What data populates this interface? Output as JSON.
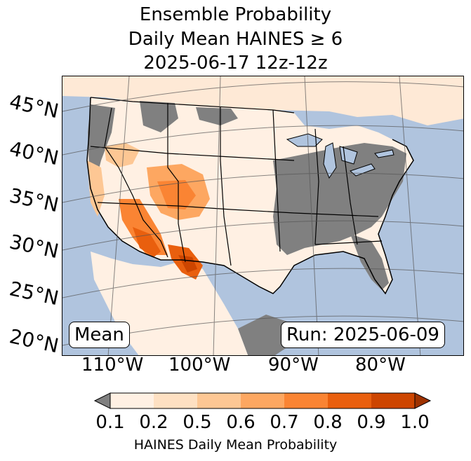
{
  "title": {
    "line1": "Ensemble Probability",
    "line2": "Daily Mean HAINES ≥ 6",
    "line3": "2025-06-17 12z-12z"
  },
  "map": {
    "region": "Continental United States",
    "latitude_labels": [
      "45°N",
      "40°N",
      "35°N",
      "30°N",
      "25°N",
      "20°N"
    ],
    "longitude_labels": [
      "110°W",
      "100°W",
      "90°W",
      "80°W"
    ],
    "mean_label": "Mean",
    "run_label": "Run: 2025-06-09",
    "colors": {
      "ocean": "#b0c4de",
      "land_masked": "#808080",
      "lakes": "#b0c4de",
      "border": "#000000"
    }
  },
  "colorbar": {
    "label": "HAINES Daily Mean Probability",
    "ticks": [
      "0.1",
      "0.2",
      "0.5",
      "0.6",
      "0.7",
      "0.8",
      "0.9",
      "1.0"
    ],
    "bins": [
      {
        "range": "0.1-0.2",
        "color": "#fff0e3"
      },
      {
        "range": "0.2-0.5",
        "color": "#fee0c2"
      },
      {
        "range": "0.5-0.6",
        "color": "#fdc794"
      },
      {
        "range": "0.6-0.7",
        "color": "#fda761"
      },
      {
        "range": "0.7-0.8",
        "color": "#fa8433"
      },
      {
        "range": "0.8-0.9",
        "color": "#e95f0e"
      },
      {
        "range": "0.9-1.0",
        "color": "#cd4500"
      }
    ],
    "under_color": "#808080",
    "over_color": "#9e3200"
  }
}
